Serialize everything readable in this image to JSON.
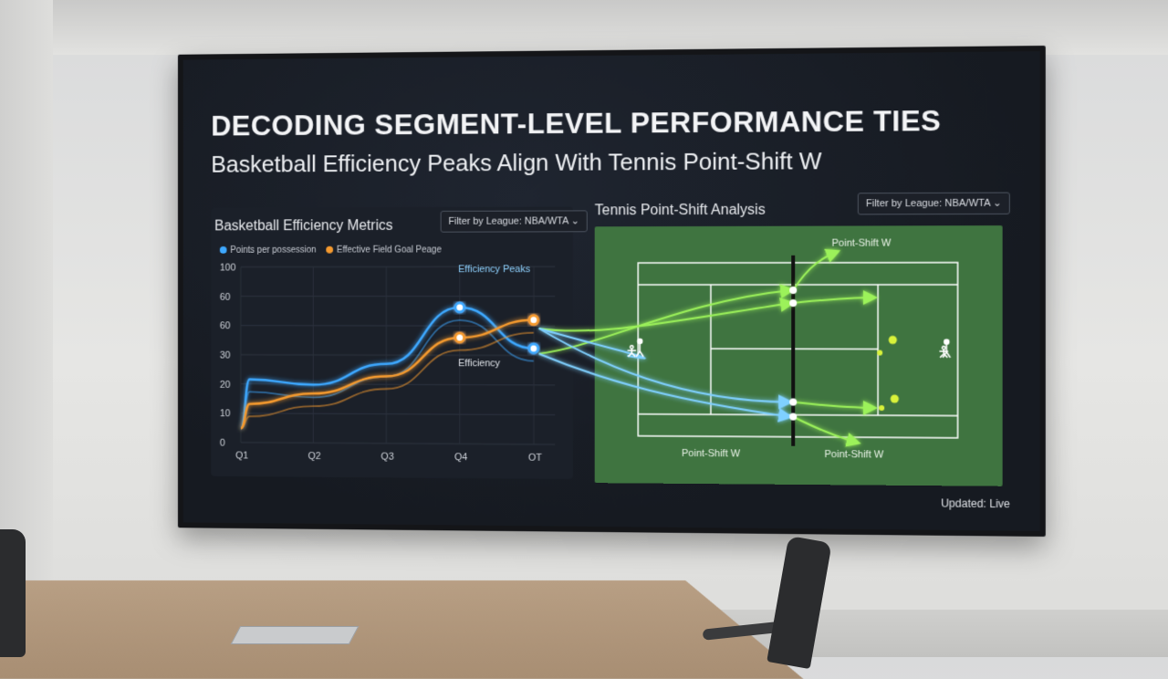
{
  "presentation": {
    "title": "DECODING SEGMENT-LEVEL PERFORMANCE TIES",
    "subtitle": "Basketball Efficiency Peaks Align With Tennis Point-Shift W",
    "updated": "Updated: Live"
  },
  "basketball_panel": {
    "title": "Basketball Efficiency Metrics",
    "filter": "Filter by League: NBA/WTA",
    "legend": [
      {
        "label": "Points per possession",
        "color": "#3ea8ff"
      },
      {
        "label": "Effective Field Goal Peage",
        "color": "#f59a2f"
      }
    ],
    "annotations": {
      "peak": "Efficiency Peaks",
      "efficiency": "Efficiency"
    }
  },
  "tennis_panel": {
    "title": "Tennis Point-Shift Analysis",
    "filter": "Filter by League: NBA/WTA",
    "labels": [
      "Point-Shift W",
      "Point-Shift W",
      "Point-Shift W"
    ]
  },
  "colors": {
    "blue": "#3ea8ff",
    "orange": "#f59a2f",
    "green": "#9cf25a",
    "court": "#3f7440"
  },
  "chart_data": {
    "type": "line",
    "title": "Basketball Efficiency Metrics",
    "categories": [
      "Q1",
      "Q2",
      "Q3",
      "Q4",
      "OT"
    ],
    "y_ticks": [
      "100",
      "60",
      "60",
      "30",
      "20",
      "10",
      "0"
    ],
    "ylim": [
      0,
      100
    ],
    "series": [
      {
        "name": "Points per possession",
        "values": [
          36,
          33,
          45,
          77,
          54
        ]
      },
      {
        "name": "Effective Field Goal Peage",
        "values": [
          22,
          28,
          38,
          60,
          70
        ]
      }
    ],
    "legend_position": "top-left",
    "grid": true
  },
  "icons": [
    "tennis-player-icon",
    "tennis-ball-icon",
    "arrow-icon"
  ]
}
